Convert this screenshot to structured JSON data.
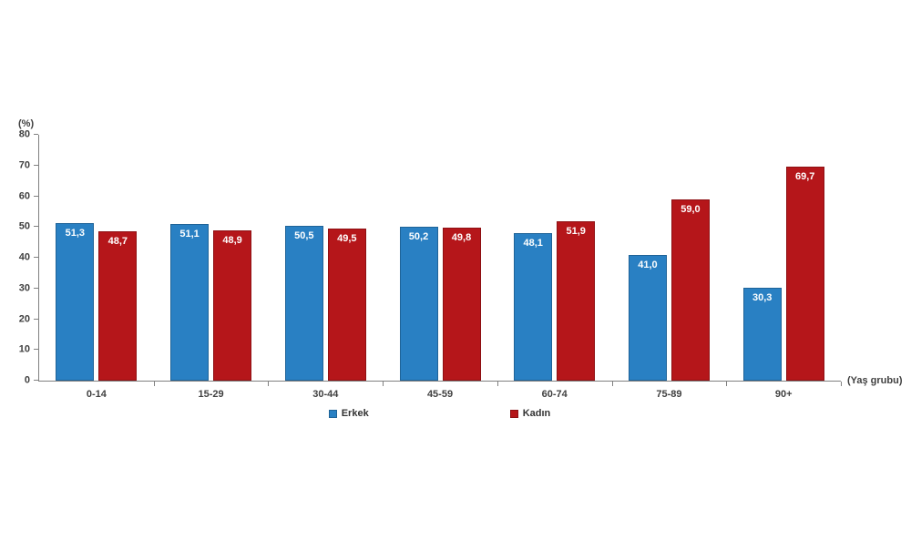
{
  "chart_data": {
    "type": "bar",
    "title": "",
    "unit_label": "(%)",
    "x_axis_label": "(Yaş grubu)",
    "categories": [
      "0-14",
      "15-29",
      "30-44",
      "45-59",
      "60-74",
      "75-89",
      "90+"
    ],
    "series": [
      {
        "name": "Erkek",
        "color": "#2980C3",
        "border_color": "#1F6398",
        "values": [
          51.3,
          51.1,
          50.5,
          50.2,
          48.1,
          41.0,
          30.3
        ],
        "value_labels": [
          "51,3",
          "51,1",
          "50,5",
          "50,2",
          "48,1",
          "41,0",
          "30,3"
        ]
      },
      {
        "name": "Kadın",
        "color": "#B5161A",
        "border_color": "#8E1013",
        "values": [
          48.7,
          48.9,
          49.5,
          49.8,
          51.9,
          59.0,
          69.7
        ],
        "value_labels": [
          "48,7",
          "48,9",
          "49,5",
          "49,8",
          "51,9",
          "59,0",
          "69,7"
        ]
      }
    ],
    "ylim": [
      0,
      80
    ],
    "yticks": [
      0,
      10,
      20,
      30,
      40,
      50,
      60,
      70,
      80
    ],
    "grid": false,
    "legend_position": "bottom",
    "axis_color": "#808080",
    "value_label_color": "#ffffff"
  }
}
